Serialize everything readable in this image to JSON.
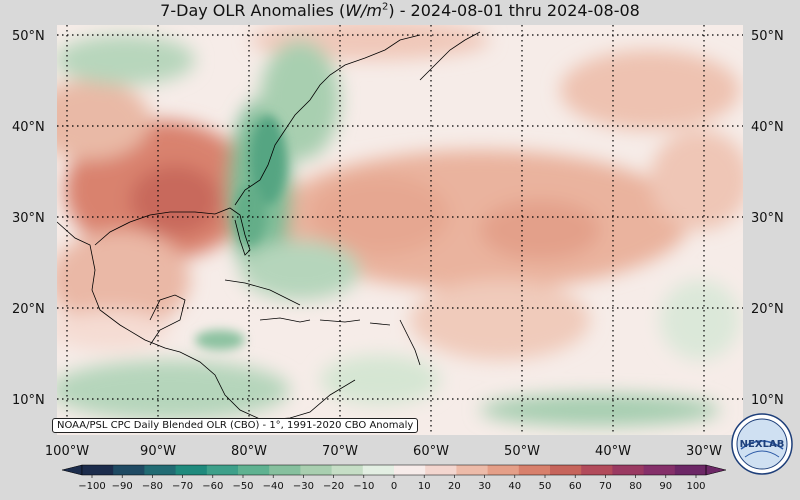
{
  "title": {
    "prefix": "7-Day OLR Anomalies (",
    "unit_base": "W/m",
    "unit_exp": "2",
    "suffix": ") - 2024-08-01 thru 2024-08-08"
  },
  "lat_labels": [
    "50°N",
    "40°N",
    "30°N",
    "20°N",
    "10°N"
  ],
  "lon_labels": [
    "100°W",
    "90°W",
    "80°W",
    "70°W",
    "60°W",
    "50°W",
    "40°W",
    "30°W"
  ],
  "credit": "NOAA/PSL CPC Daily Blended OLR (CBO) - 1°, 1991-2020 CBO Anomaly",
  "colorbar": {
    "ticks": [
      "−100",
      "−90",
      "−80",
      "−70",
      "−60",
      "−50",
      "−40",
      "−30",
      "−20",
      "−10",
      "0",
      "10",
      "20",
      "30",
      "40",
      "50",
      "60",
      "70",
      "80",
      "90",
      "100"
    ],
    "colors": [
      "#1c2c4c",
      "#1f4a63",
      "#216b73",
      "#1f8a7d",
      "#3ea08a",
      "#5fb291",
      "#86c09e",
      "#a9cfb0",
      "#c6dec6",
      "#e3efe3",
      "#f7ecea",
      "#f3d6cf",
      "#edbba9",
      "#e59f88",
      "#d8806c",
      "#c6645b",
      "#b24b5b",
      "#9a3a62",
      "#85306a",
      "#6c2766"
    ]
  },
  "logo": {
    "text": "NEXLAB"
  },
  "colors": {
    "background": "#d9d9d9",
    "coast": "#000000",
    "grid": "#000000"
  }
}
